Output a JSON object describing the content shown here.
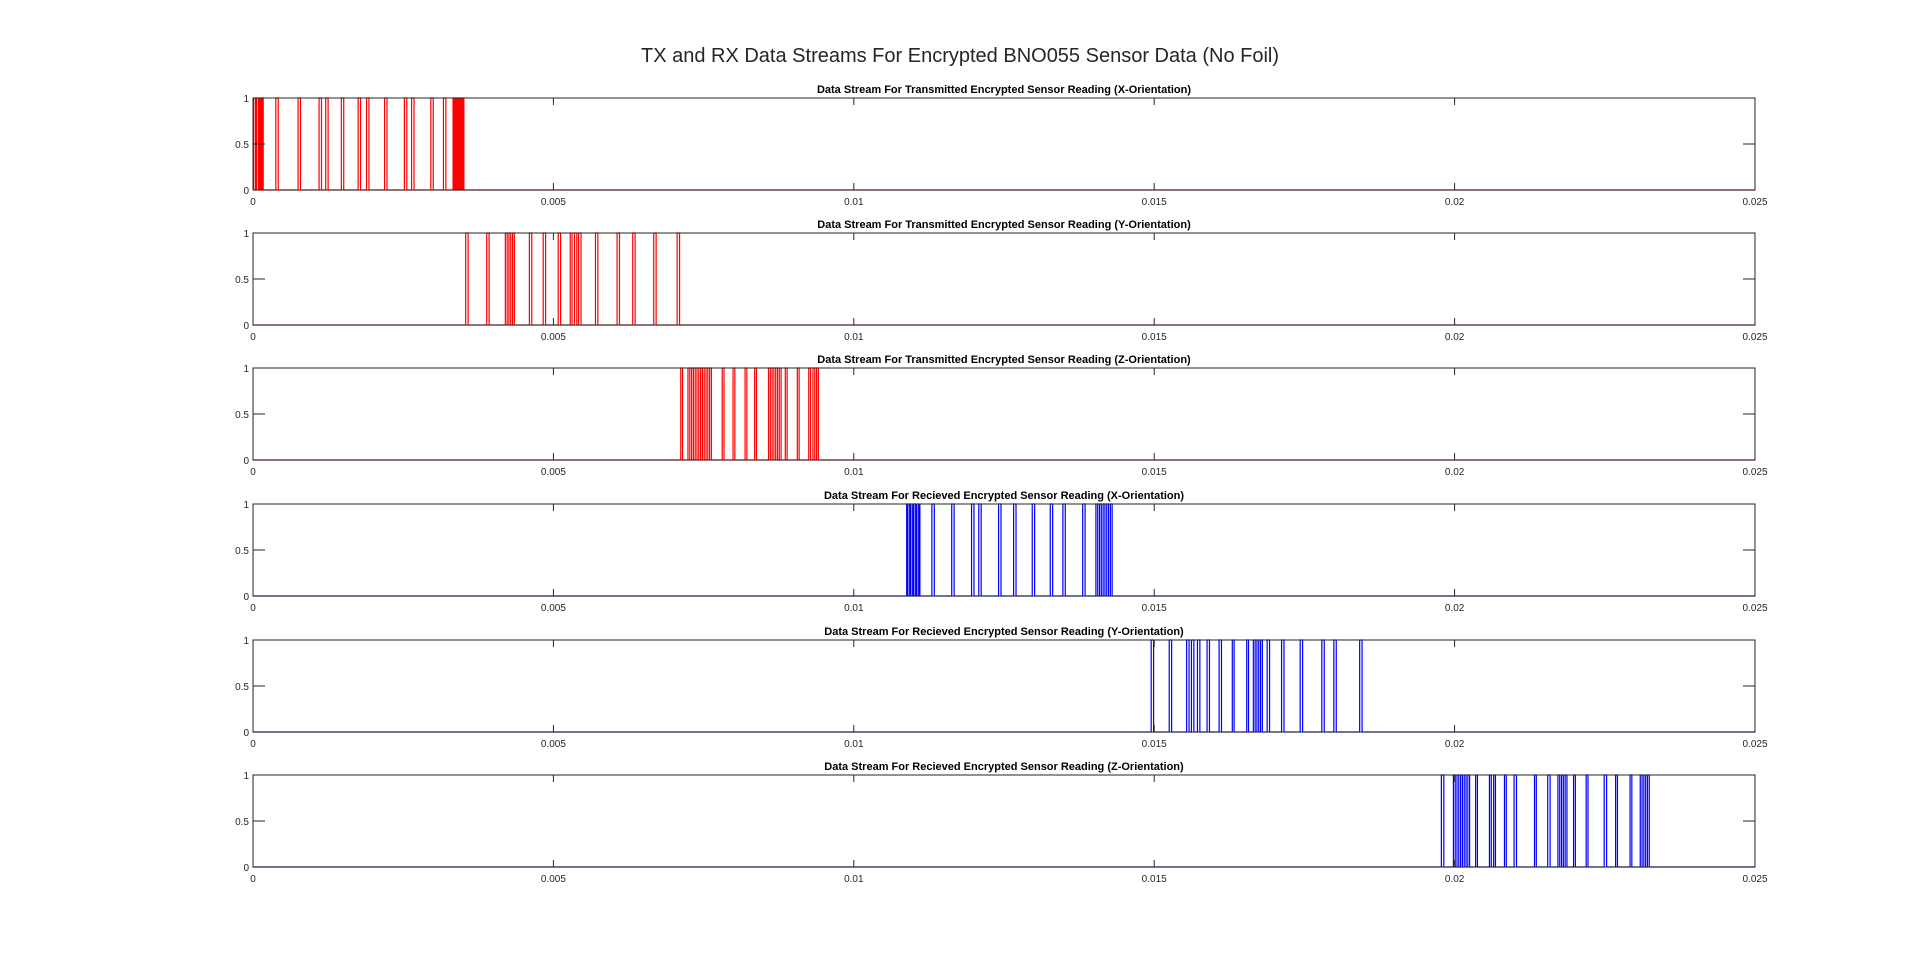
{
  "figure_title": "TX and RX Data Streams For Encrypted BNO055 Sensor Data (No Foil)",
  "colors": {
    "tx": "#ff0000",
    "rx": "#0000ff",
    "axis": "#262626"
  },
  "chart_data": [
    {
      "type": "line",
      "title": "Data Stream For Transmitted Encrypted Sensor Reading (X-Orientation)",
      "color": "#ff0000",
      "xlim": [
        0,
        0.025
      ],
      "ylim": [
        0,
        1
      ],
      "xticks": [
        0,
        0.005,
        0.01,
        0.015,
        0.02,
        0.025
      ],
      "xtick_labels": [
        "0",
        "0.005",
        "0.01",
        "0.015",
        "0.02",
        "0.025"
      ],
      "yticks": [
        0,
        0.5,
        1
      ],
      "ytick_labels": [
        "0",
        "0.5",
        "1"
      ],
      "edges": [
        1e-05,
        4e-05,
        6e-05,
        9e-05,
        0.00011,
        0.00013,
        0.00015,
        0.00017,
        0.00038,
        0.00042,
        0.00075,
        0.00079,
        0.0011,
        0.00114,
        0.00121,
        0.00125,
        0.00147,
        0.00151,
        0.00175,
        0.00179,
        0.00189,
        0.00193,
        0.00219,
        0.00223,
        0.00252,
        0.00256,
        0.00264,
        0.00268,
        0.00296,
        0.003,
        0.00317,
        0.00321,
        0.00333,
        0.00335,
        0.00337,
        0.00339,
        0.00341,
        0.00343,
        0.00345,
        0.00347,
        0.00349,
        0.00351
      ]
    },
    {
      "type": "line",
      "title": "Data Stream For Transmitted Encrypted Sensor Reading (Y-Orientation)",
      "color": "#ff0000",
      "xlim": [
        0,
        0.025
      ],
      "ylim": [
        0,
        1
      ],
      "xticks": [
        0,
        0.005,
        0.01,
        0.015,
        0.02,
        0.025
      ],
      "xtick_labels": [
        "0",
        "0.005",
        "0.01",
        "0.015",
        "0.02",
        "0.025"
      ],
      "yticks": [
        0,
        0.5,
        1
      ],
      "ytick_labels": [
        "0",
        "0.5",
        "1"
      ],
      "edges": [
        0.00354,
        0.00358,
        0.00389,
        0.00393,
        0.0042,
        0.00423,
        0.00426,
        0.00429,
        0.00432,
        0.00435,
        0.0046,
        0.00464,
        0.00483,
        0.00487,
        0.00508,
        0.00512,
        0.00528,
        0.00531,
        0.00535,
        0.00539,
        0.00542,
        0.00546,
        0.0057,
        0.00574,
        0.00606,
        0.0061,
        0.00632,
        0.00636,
        0.00667,
        0.00671,
        0.00706,
        0.0071
      ]
    },
    {
      "type": "line",
      "title": "Data Stream For Transmitted Encrypted Sensor Reading (Z-Orientation)",
      "color": "#ff0000",
      "xlim": [
        0,
        0.025
      ],
      "ylim": [
        0,
        1
      ],
      "xticks": [
        0,
        0.005,
        0.01,
        0.015,
        0.02,
        0.025
      ],
      "xtick_labels": [
        "0",
        "0.005",
        "0.01",
        "0.015",
        "0.02",
        "0.025"
      ],
      "yticks": [
        0,
        0.5,
        1
      ],
      "ytick_labels": [
        "0",
        "0.5",
        "1"
      ],
      "edges": [
        0.00712,
        0.00715,
        0.00724,
        0.00727,
        0.0073,
        0.00733,
        0.00736,
        0.00739,
        0.00742,
        0.00745,
        0.00748,
        0.00751,
        0.00754,
        0.00757,
        0.0076,
        0.00763,
        0.00781,
        0.00784,
        0.00799,
        0.00802,
        0.00819,
        0.00822,
        0.00835,
        0.00838,
        0.00858,
        0.00861,
        0.00864,
        0.00867,
        0.0087,
        0.00873,
        0.00876,
        0.00879,
        0.00886,
        0.00889,
        0.00906,
        0.00909,
        0.00925,
        0.00928,
        0.00932,
        0.00935,
        0.00938,
        0.00941
      ]
    },
    {
      "type": "line",
      "title": "Data Stream For Recieved Encrypted Sensor Reading (X-Orientation)",
      "color": "#0000ff",
      "xlim": [
        0,
        0.025
      ],
      "ylim": [
        0,
        1
      ],
      "xticks": [
        0,
        0.005,
        0.01,
        0.015,
        0.02,
        0.025
      ],
      "xtick_labels": [
        "0",
        "0.005",
        "0.01",
        "0.015",
        "0.02",
        "0.025"
      ],
      "yticks": [
        0,
        0.5,
        1
      ],
      "ytick_labels": [
        "0",
        "0.5",
        "1"
      ],
      "edges": [
        0.01088,
        0.0109,
        0.01093,
        0.01095,
        0.01098,
        0.011,
        0.01103,
        0.01105,
        0.01108,
        0.0111,
        0.0113,
        0.01134,
        0.01163,
        0.01167,
        0.01196,
        0.012,
        0.01208,
        0.01212,
        0.01241,
        0.01245,
        0.01266,
        0.0127,
        0.01297,
        0.01301,
        0.01327,
        0.01331,
        0.01348,
        0.01352,
        0.01381,
        0.01385,
        0.01403,
        0.01406,
        0.01409,
        0.01412,
        0.01415,
        0.01418,
        0.01421,
        0.01424,
        0.01427,
        0.0143
      ]
    },
    {
      "type": "line",
      "title": "Data Stream For Recieved Encrypted Sensor Reading (Y-Orientation)",
      "color": "#0000ff",
      "xlim": [
        0,
        0.025
      ],
      "ylim": [
        0,
        1
      ],
      "xticks": [
        0,
        0.005,
        0.01,
        0.015,
        0.02,
        0.025
      ],
      "xtick_labels": [
        "0",
        "0.005",
        "0.01",
        "0.015",
        "0.02",
        "0.025"
      ],
      "yticks": [
        0,
        0.5,
        1
      ],
      "ytick_labels": [
        "0",
        "0.5",
        "1"
      ],
      "edges": [
        0.01495,
        0.01499,
        0.01525,
        0.01529,
        0.01554,
        0.01558,
        0.01562,
        0.01566,
        0.01572,
        0.01576,
        0.01588,
        0.01592,
        0.01608,
        0.01612,
        0.0163,
        0.01633,
        0.01654,
        0.01657,
        0.01665,
        0.01668,
        0.01671,
        0.01674,
        0.01677,
        0.0168,
        0.01688,
        0.01692,
        0.01712,
        0.01716,
        0.01743,
        0.01747,
        0.01779,
        0.01783,
        0.01799,
        0.01803,
        0.01842,
        0.01846
      ]
    },
    {
      "type": "line",
      "title": "Data Stream For Recieved Encrypted Sensor Reading (Z-Orientation)",
      "color": "#0000ff",
      "xlim": [
        0,
        0.025
      ],
      "ylim": [
        0,
        1
      ],
      "xticks": [
        0,
        0.005,
        0.01,
        0.015,
        0.02,
        0.025
      ],
      "xtick_labels": [
        "0",
        "0.005",
        "0.01",
        "0.015",
        "0.02",
        "0.025"
      ],
      "yticks": [
        0,
        0.5,
        1
      ],
      "ytick_labels": [
        "0",
        "0.5",
        "1"
      ],
      "edges": [
        0.01978,
        0.01982,
        0.01998,
        0.02001,
        0.02004,
        0.02007,
        0.0201,
        0.02013,
        0.02016,
        0.02019,
        0.02022,
        0.02025,
        0.02035,
        0.02038,
        0.02058,
        0.02061,
        0.02065,
        0.02068,
        0.02083,
        0.02086,
        0.02099,
        0.02103,
        0.02133,
        0.02136,
        0.02155,
        0.02159,
        0.02172,
        0.02175,
        0.02178,
        0.02181,
        0.02184,
        0.02187,
        0.02198,
        0.02201,
        0.02219,
        0.02222,
        0.02249,
        0.02253,
        0.02268,
        0.02271,
        0.02292,
        0.02295,
        0.02309,
        0.02312,
        0.02315,
        0.02318,
        0.02321,
        0.02324
      ]
    }
  ]
}
